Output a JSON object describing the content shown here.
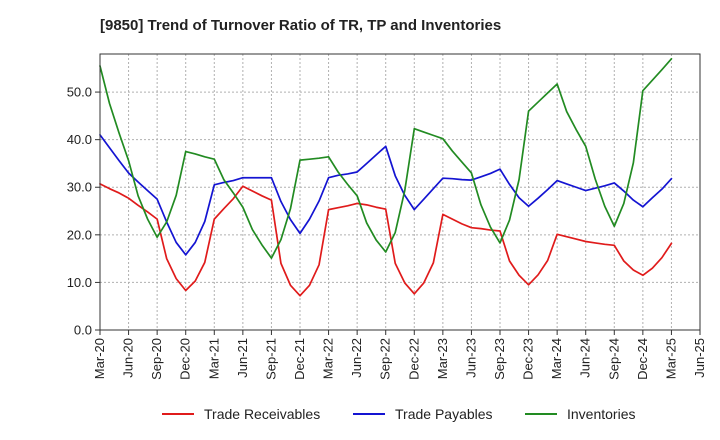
{
  "chart_data": {
    "type": "line",
    "title": "[9850]  Trend of Turnover Ratio of TR, TP and Inventories",
    "xlabel": "",
    "ylabel": "",
    "ylim": [
      0,
      58
    ],
    "yticks": [
      "0.0",
      "10.0",
      "20.0",
      "30.0",
      "40.0",
      "50.0"
    ],
    "x_tick_labels": [
      "Mar-20",
      "Jun-20",
      "Sep-20",
      "Dec-20",
      "Mar-21",
      "Jun-21",
      "Sep-21",
      "Dec-21",
      "Mar-22",
      "Jun-22",
      "Sep-22",
      "Dec-22",
      "Mar-23",
      "Jun-23",
      "Sep-23",
      "Dec-23",
      "Mar-24",
      "Jun-24",
      "Sep-24",
      "Dec-24",
      "Mar-25",
      "Jun-25"
    ],
    "x": [
      "Mar-20",
      "Apr-20",
      "May-20",
      "Jun-20",
      "Jul-20",
      "Aug-20",
      "Sep-20",
      "Oct-20",
      "Nov-20",
      "Dec-20",
      "Jan-21",
      "Feb-21",
      "Mar-21",
      "Apr-21",
      "May-21",
      "Jun-21",
      "Jul-21",
      "Aug-21",
      "Sep-21",
      "Oct-21",
      "Nov-21",
      "Dec-21",
      "Jan-22",
      "Feb-22",
      "Mar-22",
      "Apr-22",
      "May-22",
      "Jun-22",
      "Jul-22",
      "Aug-22",
      "Sep-22",
      "Oct-22",
      "Nov-22",
      "Dec-22",
      "Jan-23",
      "Feb-23",
      "Mar-23",
      "Apr-23",
      "May-23",
      "Jun-23",
      "Jul-23",
      "Aug-23",
      "Sep-23",
      "Oct-23",
      "Nov-23",
      "Dec-23",
      "Jan-24",
      "Feb-24",
      "Mar-24",
      "Apr-24",
      "May-24",
      "Jun-24",
      "Jul-24",
      "Aug-24",
      "Sep-24",
      "Oct-24",
      "Nov-24",
      "Dec-24",
      "Jan-25",
      "Feb-25",
      "Mar-25"
    ],
    "series": [
      {
        "name": "Trade Receivables",
        "color": "#e01b1b",
        "values": [
          30.7,
          29.7,
          28.8,
          27.7,
          26.2,
          24.8,
          23.3,
          15.0,
          10.8,
          8.3,
          10.3,
          14.2,
          23.3,
          25.5,
          27.6,
          30.2,
          29.2,
          28.2,
          27.3,
          14.0,
          9.4,
          7.2,
          9.4,
          13.7,
          25.3,
          25.7,
          26.1,
          26.6,
          26.3,
          25.8,
          25.4,
          14.0,
          9.9,
          7.6,
          9.9,
          14.1,
          24.3,
          23.3,
          22.3,
          21.5,
          21.3,
          21.0,
          20.8,
          14.5,
          11.5,
          9.5,
          11.6,
          14.6,
          20.1,
          19.6,
          19.1,
          18.6,
          18.3,
          18.0,
          17.8,
          14.5,
          12.6,
          11.5,
          13.0,
          15.2,
          18.2
        ]
      },
      {
        "name": "Trade Payables",
        "color": "#1414d2",
        "values": [
          41.0,
          38.3,
          35.6,
          33.0,
          31.1,
          29.3,
          27.5,
          22.7,
          18.4,
          15.8,
          18.4,
          22.8,
          30.5,
          31.0,
          31.4,
          32.0,
          32.0,
          32.0,
          32.0,
          27.0,
          23.2,
          20.3,
          23.3,
          27.1,
          32.0,
          32.5,
          32.8,
          33.2,
          35.0,
          36.8,
          38.6,
          32.4,
          28.3,
          25.3,
          27.5,
          29.7,
          31.9,
          31.8,
          31.6,
          31.5,
          32.2,
          32.9,
          33.8,
          30.6,
          27.8,
          26.0,
          27.7,
          29.5,
          31.4,
          30.7,
          30.0,
          29.3,
          29.8,
          30.3,
          30.9,
          29.2,
          27.3,
          25.9,
          27.8,
          29.6,
          31.8
        ]
      },
      {
        "name": "Inventories",
        "color": "#228b22",
        "values": [
          55.5,
          47.6,
          41.4,
          35.6,
          28.2,
          23.3,
          19.5,
          22.7,
          28.3,
          37.5,
          37.0,
          36.4,
          35.9,
          31.6,
          28.8,
          25.8,
          21.1,
          17.9,
          15.1,
          19.0,
          25.5,
          35.7,
          35.9,
          36.1,
          36.4,
          33.2,
          30.6,
          28.2,
          22.5,
          18.9,
          16.4,
          20.5,
          29.3,
          42.3,
          41.6,
          40.9,
          40.2,
          37.6,
          35.3,
          33.0,
          26.3,
          21.6,
          18.3,
          23.1,
          31.6,
          46.0,
          47.9,
          49.8,
          51.7,
          45.9,
          42.1,
          38.6,
          31.7,
          26.0,
          21.8,
          26.6,
          35.1,
          50.3,
          52.5,
          54.7,
          57.0
        ]
      }
    ],
    "grid": true,
    "legend_position": "bottom"
  }
}
